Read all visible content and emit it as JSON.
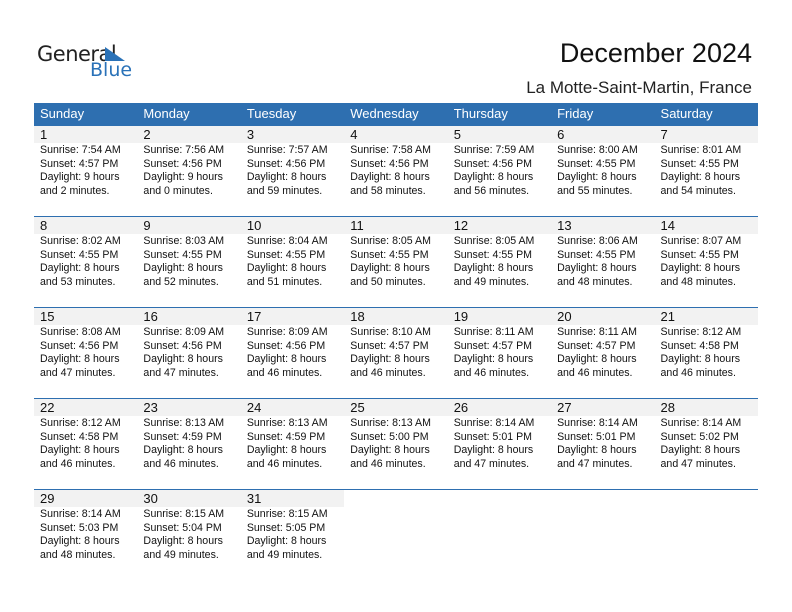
{
  "logo": {
    "general": "General",
    "blue": "Blue"
  },
  "title": "December 2024",
  "location": "La Motte-Saint-Martin, France",
  "colors": {
    "header": "#2e6fb0",
    "logo_blue": "#2a72b8",
    "day_band": "#f2f2f2"
  },
  "weekdays": [
    "Sunday",
    "Monday",
    "Tuesday",
    "Wednesday",
    "Thursday",
    "Friday",
    "Saturday"
  ],
  "weeks": [
    [
      {
        "day": "1",
        "sunrise": "Sunrise: 7:54 AM",
        "sunset": "Sunset: 4:57 PM",
        "daylight1": "Daylight: 9 hours",
        "daylight2": "and 2 minutes."
      },
      {
        "day": "2",
        "sunrise": "Sunrise: 7:56 AM",
        "sunset": "Sunset: 4:56 PM",
        "daylight1": "Daylight: 9 hours",
        "daylight2": "and 0 minutes."
      },
      {
        "day": "3",
        "sunrise": "Sunrise: 7:57 AM",
        "sunset": "Sunset: 4:56 PM",
        "daylight1": "Daylight: 8 hours",
        "daylight2": "and 59 minutes."
      },
      {
        "day": "4",
        "sunrise": "Sunrise: 7:58 AM",
        "sunset": "Sunset: 4:56 PM",
        "daylight1": "Daylight: 8 hours",
        "daylight2": "and 58 minutes."
      },
      {
        "day": "5",
        "sunrise": "Sunrise: 7:59 AM",
        "sunset": "Sunset: 4:56 PM",
        "daylight1": "Daylight: 8 hours",
        "daylight2": "and 56 minutes."
      },
      {
        "day": "6",
        "sunrise": "Sunrise: 8:00 AM",
        "sunset": "Sunset: 4:55 PM",
        "daylight1": "Daylight: 8 hours",
        "daylight2": "and 55 minutes."
      },
      {
        "day": "7",
        "sunrise": "Sunrise: 8:01 AM",
        "sunset": "Sunset: 4:55 PM",
        "daylight1": "Daylight: 8 hours",
        "daylight2": "and 54 minutes."
      }
    ],
    [
      {
        "day": "8",
        "sunrise": "Sunrise: 8:02 AM",
        "sunset": "Sunset: 4:55 PM",
        "daylight1": "Daylight: 8 hours",
        "daylight2": "and 53 minutes."
      },
      {
        "day": "9",
        "sunrise": "Sunrise: 8:03 AM",
        "sunset": "Sunset: 4:55 PM",
        "daylight1": "Daylight: 8 hours",
        "daylight2": "and 52 minutes."
      },
      {
        "day": "10",
        "sunrise": "Sunrise: 8:04 AM",
        "sunset": "Sunset: 4:55 PM",
        "daylight1": "Daylight: 8 hours",
        "daylight2": "and 51 minutes."
      },
      {
        "day": "11",
        "sunrise": "Sunrise: 8:05 AM",
        "sunset": "Sunset: 4:55 PM",
        "daylight1": "Daylight: 8 hours",
        "daylight2": "and 50 minutes."
      },
      {
        "day": "12",
        "sunrise": "Sunrise: 8:05 AM",
        "sunset": "Sunset: 4:55 PM",
        "daylight1": "Daylight: 8 hours",
        "daylight2": "and 49 minutes."
      },
      {
        "day": "13",
        "sunrise": "Sunrise: 8:06 AM",
        "sunset": "Sunset: 4:55 PM",
        "daylight1": "Daylight: 8 hours",
        "daylight2": "and 48 minutes."
      },
      {
        "day": "14",
        "sunrise": "Sunrise: 8:07 AM",
        "sunset": "Sunset: 4:55 PM",
        "daylight1": "Daylight: 8 hours",
        "daylight2": "and 48 minutes."
      }
    ],
    [
      {
        "day": "15",
        "sunrise": "Sunrise: 8:08 AM",
        "sunset": "Sunset: 4:56 PM",
        "daylight1": "Daylight: 8 hours",
        "daylight2": "and 47 minutes."
      },
      {
        "day": "16",
        "sunrise": "Sunrise: 8:09 AM",
        "sunset": "Sunset: 4:56 PM",
        "daylight1": "Daylight: 8 hours",
        "daylight2": "and 47 minutes."
      },
      {
        "day": "17",
        "sunrise": "Sunrise: 8:09 AM",
        "sunset": "Sunset: 4:56 PM",
        "daylight1": "Daylight: 8 hours",
        "daylight2": "and 46 minutes."
      },
      {
        "day": "18",
        "sunrise": "Sunrise: 8:10 AM",
        "sunset": "Sunset: 4:57 PM",
        "daylight1": "Daylight: 8 hours",
        "daylight2": "and 46 minutes."
      },
      {
        "day": "19",
        "sunrise": "Sunrise: 8:11 AM",
        "sunset": "Sunset: 4:57 PM",
        "daylight1": "Daylight: 8 hours",
        "daylight2": "and 46 minutes."
      },
      {
        "day": "20",
        "sunrise": "Sunrise: 8:11 AM",
        "sunset": "Sunset: 4:57 PM",
        "daylight1": "Daylight: 8 hours",
        "daylight2": "and 46 minutes."
      },
      {
        "day": "21",
        "sunrise": "Sunrise: 8:12 AM",
        "sunset": "Sunset: 4:58 PM",
        "daylight1": "Daylight: 8 hours",
        "daylight2": "and 46 minutes."
      }
    ],
    [
      {
        "day": "22",
        "sunrise": "Sunrise: 8:12 AM",
        "sunset": "Sunset: 4:58 PM",
        "daylight1": "Daylight: 8 hours",
        "daylight2": "and 46 minutes."
      },
      {
        "day": "23",
        "sunrise": "Sunrise: 8:13 AM",
        "sunset": "Sunset: 4:59 PM",
        "daylight1": "Daylight: 8 hours",
        "daylight2": "and 46 minutes."
      },
      {
        "day": "24",
        "sunrise": "Sunrise: 8:13 AM",
        "sunset": "Sunset: 4:59 PM",
        "daylight1": "Daylight: 8 hours",
        "daylight2": "and 46 minutes."
      },
      {
        "day": "25",
        "sunrise": "Sunrise: 8:13 AM",
        "sunset": "Sunset: 5:00 PM",
        "daylight1": "Daylight: 8 hours",
        "daylight2": "and 46 minutes."
      },
      {
        "day": "26",
        "sunrise": "Sunrise: 8:14 AM",
        "sunset": "Sunset: 5:01 PM",
        "daylight1": "Daylight: 8 hours",
        "daylight2": "and 47 minutes."
      },
      {
        "day": "27",
        "sunrise": "Sunrise: 8:14 AM",
        "sunset": "Sunset: 5:01 PM",
        "daylight1": "Daylight: 8 hours",
        "daylight2": "and 47 minutes."
      },
      {
        "day": "28",
        "sunrise": "Sunrise: 8:14 AM",
        "sunset": "Sunset: 5:02 PM",
        "daylight1": "Daylight: 8 hours",
        "daylight2": "and 47 minutes."
      }
    ],
    [
      {
        "day": "29",
        "sunrise": "Sunrise: 8:14 AM",
        "sunset": "Sunset: 5:03 PM",
        "daylight1": "Daylight: 8 hours",
        "daylight2": "and 48 minutes."
      },
      {
        "day": "30",
        "sunrise": "Sunrise: 8:15 AM",
        "sunset": "Sunset: 5:04 PM",
        "daylight1": "Daylight: 8 hours",
        "daylight2": "and 49 minutes."
      },
      {
        "day": "31",
        "sunrise": "Sunrise: 8:15 AM",
        "sunset": "Sunset: 5:05 PM",
        "daylight1": "Daylight: 8 hours",
        "daylight2": "and 49 minutes."
      }
    ]
  ]
}
